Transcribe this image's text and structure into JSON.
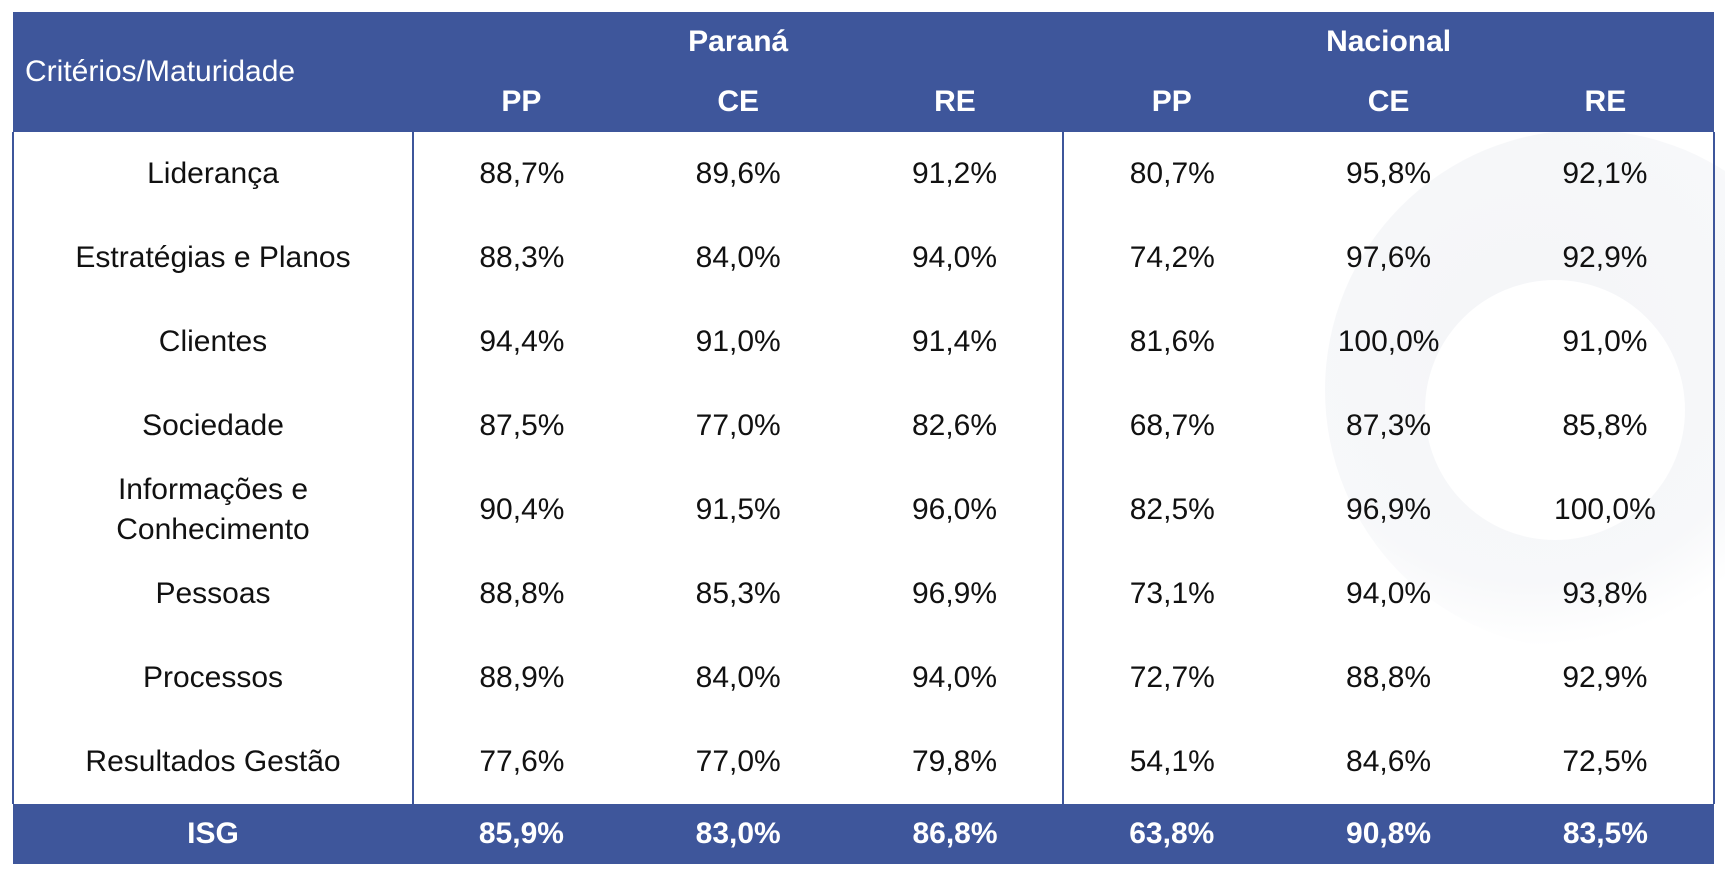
{
  "header": {
    "criteria_label": "Critérios/Maturidade",
    "groups": [
      "Paraná",
      "Nacional"
    ],
    "subcols": [
      "PP",
      "CE",
      "RE",
      "PP",
      "CE",
      "RE"
    ]
  },
  "rows": [
    {
      "label": "Liderança",
      "values": [
        "88,7%",
        "89,6%",
        "91,2%",
        "80,7%",
        "95,8%",
        "92,1%"
      ]
    },
    {
      "label": "Estratégias e Planos",
      "values": [
        "88,3%",
        "84,0%",
        "94,0%",
        "74,2%",
        "97,6%",
        "92,9%"
      ]
    },
    {
      "label": "Clientes",
      "values": [
        "94,4%",
        "91,0%",
        "91,4%",
        "81,6%",
        "100,0%",
        "91,0%"
      ]
    },
    {
      "label": "Sociedade",
      "values": [
        "87,5%",
        "77,0%",
        "82,6%",
        "68,7%",
        "87,3%",
        "85,8%"
      ]
    },
    {
      "label": "Informações e Conhecimento",
      "values": [
        "90,4%",
        "91,5%",
        "96,0%",
        "82,5%",
        "96,9%",
        "100,0%"
      ]
    },
    {
      "label": "Pessoas",
      "values": [
        "88,8%",
        "85,3%",
        "96,9%",
        "73,1%",
        "94,0%",
        "93,8%"
      ]
    },
    {
      "label": "Processos",
      "values": [
        "88,9%",
        "84,0%",
        "94,0%",
        "72,7%",
        "88,8%",
        "92,9%"
      ]
    },
    {
      "label": "Resultados Gestão",
      "values": [
        "77,6%",
        "77,0%",
        "79,8%",
        "54,1%",
        "84,6%",
        "72,5%"
      ]
    }
  ],
  "footer": {
    "label": "ISG",
    "values": [
      "85,9%",
      "83,0%",
      "86,8%",
      "63,8%",
      "90,8%",
      "83,5%"
    ]
  },
  "colors": {
    "header_bg": "#3e569b",
    "header_text": "#ffffff"
  }
}
